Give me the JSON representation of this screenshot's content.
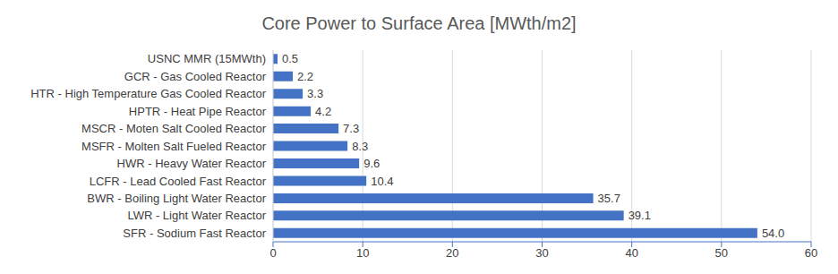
{
  "chart_data": {
    "type": "bar",
    "title": "Core Power to Surface Area [MWth/m2]",
    "orientation": "horizontal",
    "categories": [
      "USNC MMR (15MWth)",
      "GCR - Gas Cooled Reactor",
      "HTR - High Temperature Gas Cooled Reactor",
      "HPTR - Heat Pipe Reactor",
      "MSCR - Moten Salt Cooled Reactor",
      "MSFR - Molten Salt Fueled Reactor",
      "HWR - Heavy Water Reactor",
      "LCFR - Lead Cooled Fast Reactor",
      "BWR - Boiling Light Water Reactor",
      "LWR - Light Water Reactor",
      "SFR - Sodium Fast Reactor"
    ],
    "values": [
      0.5,
      2.2,
      3.3,
      4.2,
      7.3,
      8.3,
      9.6,
      10.4,
      35.7,
      39.1,
      54.0
    ],
    "value_labels": [
      "0.5",
      "2.2",
      "3.3",
      "4.2",
      "7.3",
      "8.3",
      "9.6",
      "10.4",
      "35.7",
      "39.1",
      "54.0"
    ],
    "color": "#4472c4",
    "xlim": [
      0,
      60
    ],
    "xticks": [
      0,
      10,
      20,
      30,
      40,
      50,
      60
    ],
    "grid": true,
    "data_labels": true
  }
}
